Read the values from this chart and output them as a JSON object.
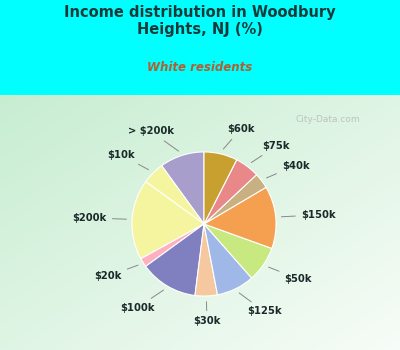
{
  "title": "Income distribution in Woodbury\nHeights, NJ (%)",
  "subtitle": "White residents",
  "title_color": "#1a3a3a",
  "subtitle_color": "#b06030",
  "background_outer": "#00ffff",
  "labels": [
    "> $200k",
    "$10k",
    "$200k",
    "$20k",
    "$100k",
    "$30k",
    "$125k",
    "$50k",
    "$150k",
    "$40k",
    "$75k",
    "$60k"
  ],
  "values": [
    10.0,
    5.0,
    18.0,
    2.0,
    13.0,
    5.0,
    8.5,
    8.0,
    14.0,
    3.5,
    5.5,
    7.5
  ],
  "colors": [
    "#a89ecc",
    "#f5f5a0",
    "#f5f5a0",
    "#ffb0c0",
    "#8080c0",
    "#f5c8a0",
    "#a0b8e8",
    "#c8e880",
    "#f5a050",
    "#c8b080",
    "#e88888",
    "#c8a030"
  ],
  "startangle": 90,
  "label_fontsize": 7.2,
  "label_color": "#1a2a2a",
  "watermark": "City-Data.com"
}
